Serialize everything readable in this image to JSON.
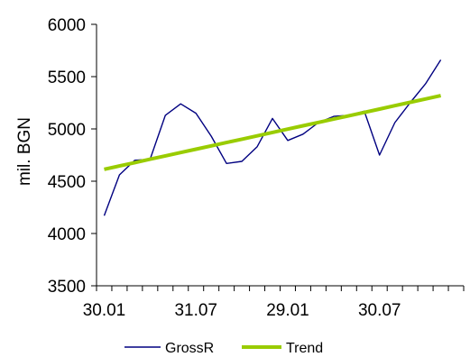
{
  "chart_data": {
    "type": "line",
    "ylabel": "mil. BGN",
    "xlabel": "",
    "ylim": [
      3500,
      6000
    ],
    "yticks": [
      3500,
      4000,
      4500,
      5000,
      5500,
      6000
    ],
    "x_tick_labels": [
      {
        "index": 0,
        "label": "30.01"
      },
      {
        "index": 6,
        "label": "31.07"
      },
      {
        "index": 12,
        "label": "29.01"
      },
      {
        "index": 18,
        "label": "30.07"
      }
    ],
    "n_points": 24,
    "series": [
      {
        "name": "GrossR",
        "color": "#000080",
        "values": [
          4170,
          4560,
          4700,
          4710,
          5130,
          5240,
          5150,
          4930,
          4670,
          4690,
          4830,
          5100,
          4890,
          4950,
          5060,
          5120,
          5130,
          5170,
          4750,
          5060,
          5250,
          5430,
          5660,
          null
        ]
      },
      {
        "name": "Trend",
        "color": "#99cc00",
        "values": [
          4614,
          4646,
          4678,
          4710,
          4742,
          4774,
          4806,
          4838,
          4870,
          4902,
          4934,
          4966,
          4998,
          5030,
          5062,
          5094,
          5126,
          5158,
          5190,
          5222,
          5254,
          5286,
          5318,
          null
        ]
      }
    ],
    "grid": false,
    "legend_position": "bottom"
  }
}
